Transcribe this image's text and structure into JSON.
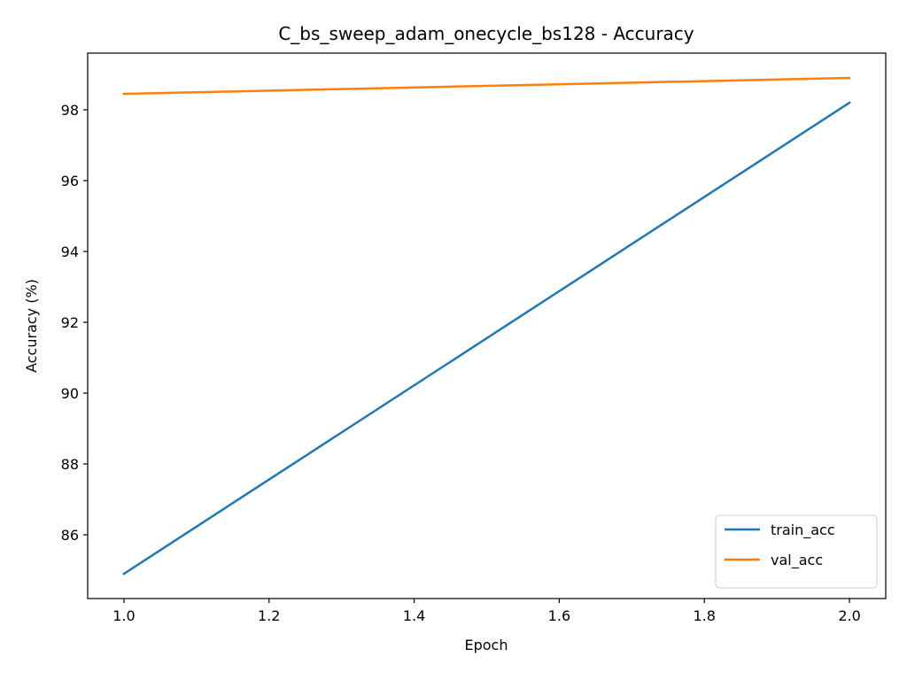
{
  "chart_data": {
    "type": "line",
    "title": "C_bs_sweep_adam_onecycle_bs128 - Accuracy",
    "xlabel": "Epoch",
    "ylabel": "Accuracy (%)",
    "x": [
      1.0,
      2.0
    ],
    "xlim": [
      0.95,
      2.05
    ],
    "ylim": [
      84.2,
      99.6
    ],
    "xticks": [
      1.0,
      1.2,
      1.4,
      1.6,
      1.8,
      2.0
    ],
    "xtick_labels": [
      "1.0",
      "1.2",
      "1.4",
      "1.6",
      "1.8",
      "2.0"
    ],
    "yticks": [
      86,
      88,
      90,
      92,
      94,
      96,
      98
    ],
    "ytick_labels": [
      "86",
      "88",
      "90",
      "92",
      "94",
      "96",
      "98"
    ],
    "grid": false,
    "legend_position": "lower-right",
    "series": [
      {
        "name": "train_acc",
        "color": "#1f77b4",
        "values": [
          84.9,
          98.2
        ]
      },
      {
        "name": "val_acc",
        "color": "#ff7f0e",
        "values": [
          98.45,
          98.9
        ]
      }
    ]
  }
}
